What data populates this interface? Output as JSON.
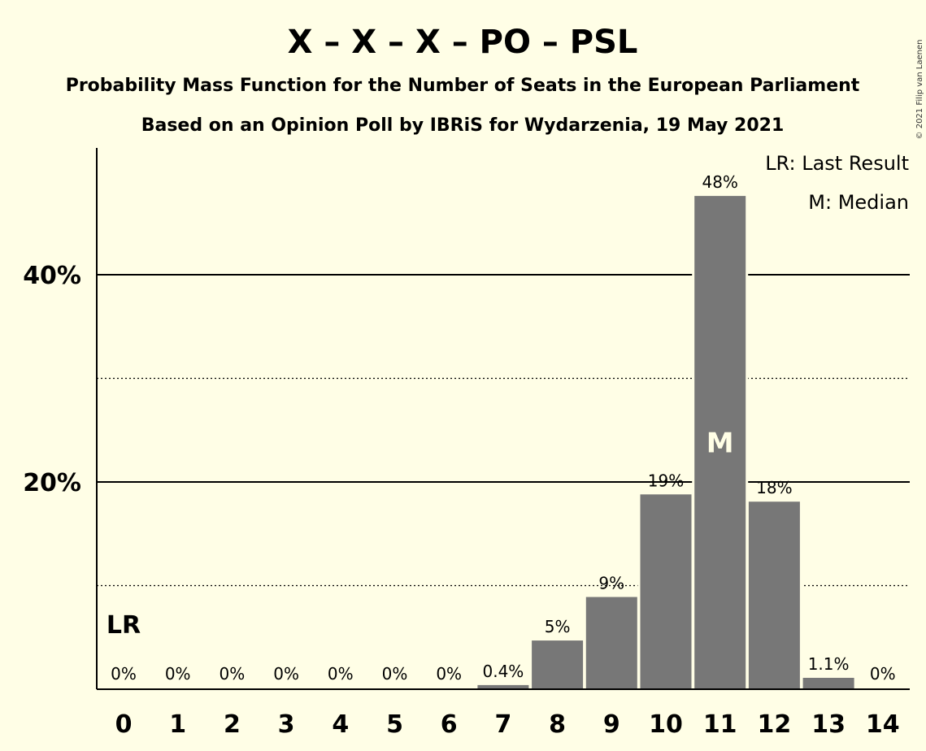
{
  "chart_data": {
    "type": "bar",
    "title": "X – X – X – PO – PSL",
    "subtitle_1": "Probability Mass Function for the Number of Seats in the European Parliament",
    "subtitle_2": "Based on an Opinion Poll by IBRiS for Wydarzenia, 19 May 2021",
    "categories": [
      "0",
      "1",
      "2",
      "3",
      "4",
      "5",
      "6",
      "7",
      "8",
      "9",
      "10",
      "11",
      "12",
      "13",
      "14"
    ],
    "values": [
      0,
      0,
      0,
      0,
      0,
      0,
      0,
      0.4,
      4.7,
      8.9,
      18.8,
      47.6,
      18.1,
      1.1,
      0
    ],
    "data_labels": [
      "0%",
      "0%",
      "0%",
      "0%",
      "0%",
      "0%",
      "0%",
      "0.4%",
      "5%",
      "9%",
      "19%",
      "48%",
      "18%",
      "1.1%",
      "0%"
    ],
    "ylim": [
      0,
      52
    ],
    "yticks_major": [
      {
        "value": 20,
        "label": "20%"
      },
      {
        "value": 40,
        "label": "40%"
      }
    ],
    "yticks_minor": [
      10,
      30
    ],
    "last_result_index": 0,
    "last_result_marker": "LR",
    "median_index": 11,
    "median_marker": "M",
    "legend": [
      "LR: Last Result",
      "M: Median"
    ],
    "legend_position": "top-right",
    "bar_color": "#777777",
    "copyright": "© 2021 Filip van Laenen"
  }
}
